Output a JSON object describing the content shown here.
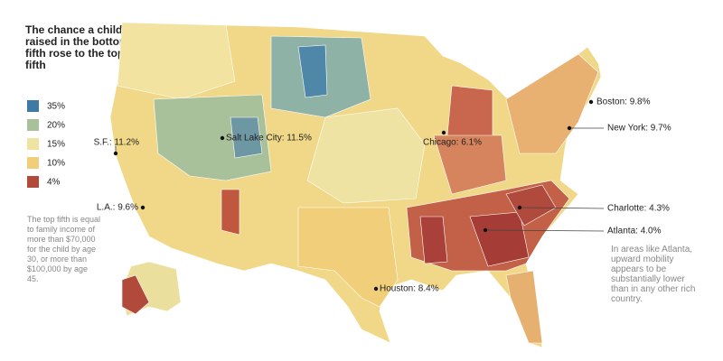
{
  "header": {
    "title": "The chance a child raised in the bottom fifth rose to the top fifth"
  },
  "legend": {
    "items": [
      {
        "label": "35%",
        "color": "#3e7aa3"
      },
      {
        "label": "20%",
        "color": "#a9c19a"
      },
      {
        "label": "15%",
        "color": "#eee3a2"
      },
      {
        "label": "10%",
        "color": "#f1cf7a"
      },
      {
        "label": "4%",
        "color": "#b24a3c"
      }
    ]
  },
  "cities": [
    {
      "label": "Boston: 9.8%"
    },
    {
      "label": "New York: 9.7%"
    },
    {
      "label": "S.F.: 11.2%"
    },
    {
      "label": "Salt Lake City: 11.5%"
    },
    {
      "label": "Chicago: 6.1%"
    },
    {
      "label": "L.A.: 9.6%"
    },
    {
      "label": "Charlotte: 4.3%"
    },
    {
      "label": "Atlanta: 4.0%"
    },
    {
      "label": "Houston: 8.4%"
    }
  ],
  "notes": {
    "definition": "The top fifth is equal to family income of more than $70,000 for the child by age 30, or more than $100,000 by age 45.",
    "atlanta": "In areas like Atlanta, upward mobility appears to be substantially lower than in any other rich country."
  }
}
